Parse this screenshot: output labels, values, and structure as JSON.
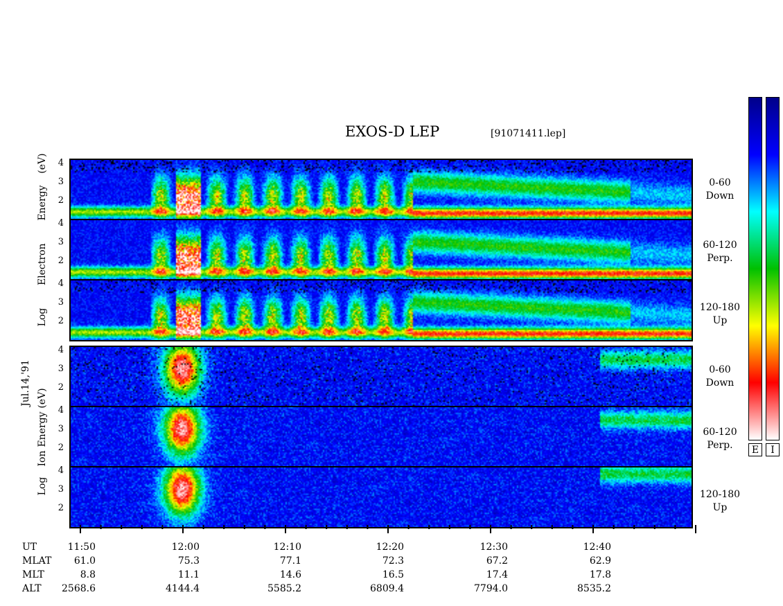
{
  "chart": {
    "title": "EXOS-D LEP",
    "file": "[91071411.lep]",
    "date": "Jul.14,'91",
    "electron": {
      "ylabel_words": [
        "Log",
        "Electron",
        "Energy",
        "(eV)"
      ],
      "panels": [
        {
          "label1": "0-60",
          "label2": "Down"
        },
        {
          "label1": "60-120",
          "label2": "Perp."
        },
        {
          "label1": "120-180",
          "label2": "Up"
        }
      ]
    },
    "ion": {
      "ylabel_words": [
        "Log",
        "Ion",
        "Energy",
        "(eV)"
      ],
      "panels": [
        {
          "label1": "0-60",
          "label2": "Down"
        },
        {
          "label1": "60-120",
          "label2": "Perp."
        },
        {
          "label1": "120-180",
          "label2": "Up"
        }
      ]
    },
    "yticks": [
      "4",
      "3",
      "2"
    ],
    "colorbar_labels": [
      "E",
      "I"
    ]
  },
  "colors": {
    "scale": [
      "#ffffff",
      "#ff0000",
      "#ffff00",
      "#00c000",
      "#00ffff",
      "#0000ff",
      "#00008a"
    ]
  },
  "ephemeris": {
    "row_labels": [
      "UT",
      "MLAT",
      "MLT",
      "ALT"
    ],
    "columns": [
      {
        "UT": "11:50",
        "MLAT": "61.0",
        "MLT": "8.8",
        "ALT": "2568.6"
      },
      {
        "UT": "12:00",
        "MLAT": "75.3",
        "MLT": "11.1",
        "ALT": "4144.4"
      },
      {
        "UT": "12:10",
        "MLAT": "77.1",
        "MLT": "14.6",
        "ALT": "5585.2"
      },
      {
        "UT": "12:20",
        "MLAT": "72.3",
        "MLT": "16.5",
        "ALT": "6809.4"
      },
      {
        "UT": "12:30",
        "MLAT": "67.2",
        "MLT": "17.4",
        "ALT": "7794.0"
      },
      {
        "UT": "12:40",
        "MLAT": "62.9",
        "MLT": "17.8",
        "ALT": "8535.2"
      }
    ]
  },
  "chart_data": {
    "type": "heatmap",
    "title": "EXOS-D LEP",
    "subtitle": "[91071411.lep]",
    "xlabel": "UT",
    "x_ticks": [
      "11:50",
      "12:00",
      "12:10",
      "12:20",
      "12:30",
      "12:40"
    ],
    "ylabel_electron": "Log Electron Energy (eV)",
    "ylabel_ion": "Log Ion Energy (eV)",
    "ylim": [
      1,
      4
    ],
    "y_ticks": [
      2,
      3,
      4
    ],
    "panels": [
      {
        "species": "Electron",
        "pitch_angle": "0-60",
        "direction": "Down"
      },
      {
        "species": "Electron",
        "pitch_angle": "60-120",
        "direction": "Perp."
      },
      {
        "species": "Electron",
        "pitch_angle": "120-180",
        "direction": "Up"
      },
      {
        "species": "Ion",
        "pitch_angle": "0-60",
        "direction": "Down"
      },
      {
        "species": "Ion",
        "pitch_angle": "60-120",
        "direction": "Perp."
      },
      {
        "species": "Ion",
        "pitch_angle": "120-180",
        "direction": "Up"
      }
    ],
    "colorbars": [
      "E",
      "I"
    ]
  }
}
